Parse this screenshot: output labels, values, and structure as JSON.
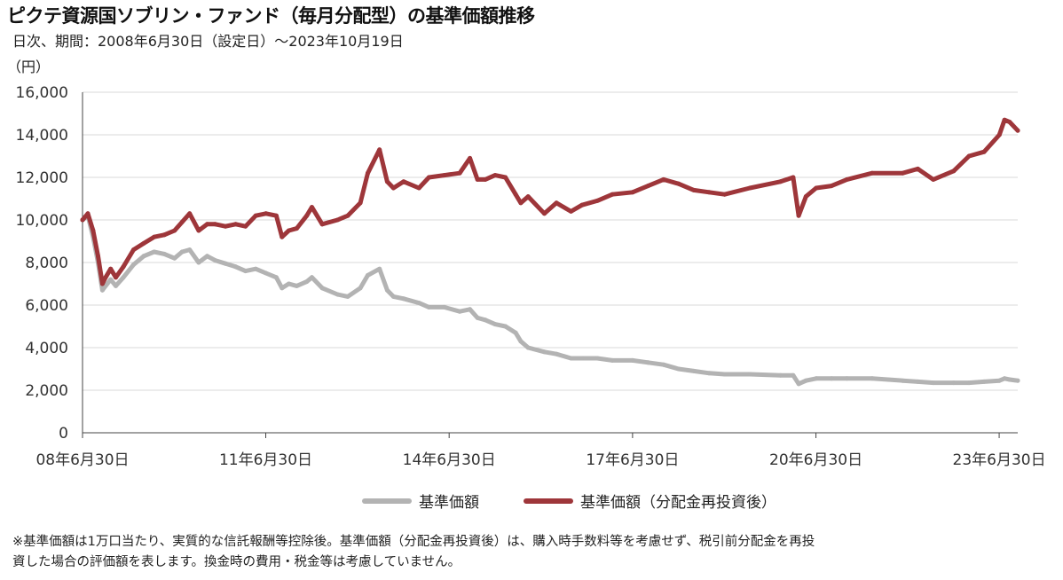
{
  "title": "ピクテ資源国ソブリン・ファンド（毎月分配型）の基準価額推移",
  "subtitle": "日次、期間：2008年6月30日（設定日）～2023年10月19日",
  "note_line1": "※基準価額は1万口当たり、実質的な信託報酬等控除後。基準価額（分配金再投資後）は、購入時手数料等を考慮せず、税引前分配金を再投",
  "note_line2": "資した場合の評価額を表します。換金時の費用・税金等は考慮していません。",
  "chart_data": {
    "type": "line",
    "ylabel": "（円）",
    "ylim": [
      0,
      16000
    ],
    "y_ticks": [
      {
        "value": 0,
        "label": "0"
      },
      {
        "value": 2000,
        "label": "2,000"
      },
      {
        "value": 4000,
        "label": "4,000"
      },
      {
        "value": 6000,
        "label": "6,000"
      },
      {
        "value": 8000,
        "label": "8,000"
      },
      {
        "value": 10000,
        "label": "10,000"
      },
      {
        "value": 12000,
        "label": "12,000"
      },
      {
        "value": 14000,
        "label": "14,000"
      },
      {
        "value": 16000,
        "label": "16,000"
      }
    ],
    "xlim": [
      "2008-06-30",
      "2023-10-19"
    ],
    "x_ticks": [
      {
        "date": "2008-06-30",
        "label": "08年6月30日"
      },
      {
        "date": "2011-06-30",
        "label": "11年6月30日"
      },
      {
        "date": "2014-06-30",
        "label": "14年6月30日"
      },
      {
        "date": "2017-06-30",
        "label": "17年6月30日"
      },
      {
        "date": "2020-06-30",
        "label": "20年6月30日"
      },
      {
        "date": "2023-06-30",
        "label": "23年6月30日"
      }
    ],
    "grid": "horizontal",
    "legend_position": "bottom",
    "series": [
      {
        "name": "基準価額",
        "color": "#b3b3b3",
        "points": [
          [
            "2008-06-30",
            10000
          ],
          [
            "2008-08-01",
            10200
          ],
          [
            "2008-09-01",
            9200
          ],
          [
            "2008-10-01",
            8000
          ],
          [
            "2008-10-27",
            6700
          ],
          [
            "2008-11-15",
            6900
          ],
          [
            "2008-12-15",
            7200
          ],
          [
            "2009-01-15",
            6900
          ],
          [
            "2009-03-01",
            7300
          ],
          [
            "2009-05-01",
            7900
          ],
          [
            "2009-07-01",
            8300
          ],
          [
            "2009-09-01",
            8500
          ],
          [
            "2009-11-01",
            8400
          ],
          [
            "2010-01-01",
            8200
          ],
          [
            "2010-02-15",
            8500
          ],
          [
            "2010-04-01",
            8600
          ],
          [
            "2010-05-25",
            8000
          ],
          [
            "2010-07-15",
            8300
          ],
          [
            "2010-09-01",
            8100
          ],
          [
            "2010-11-01",
            7950
          ],
          [
            "2011-01-01",
            7800
          ],
          [
            "2011-03-01",
            7600
          ],
          [
            "2011-05-01",
            7700
          ],
          [
            "2011-07-01",
            7500
          ],
          [
            "2011-09-01",
            7300
          ],
          [
            "2011-10-05",
            6800
          ],
          [
            "2011-11-15",
            7000
          ],
          [
            "2012-01-01",
            6900
          ],
          [
            "2012-03-01",
            7100
          ],
          [
            "2012-04-01",
            7300
          ],
          [
            "2012-06-01",
            6800
          ],
          [
            "2012-09-01",
            6500
          ],
          [
            "2012-11-01",
            6400
          ],
          [
            "2013-01-15",
            6800
          ],
          [
            "2013-03-01",
            7400
          ],
          [
            "2013-05-10",
            7700
          ],
          [
            "2013-06-25",
            6700
          ],
          [
            "2013-08-01",
            6400
          ],
          [
            "2013-10-01",
            6300
          ],
          [
            "2014-01-01",
            6100
          ],
          [
            "2014-03-01",
            5900
          ],
          [
            "2014-06-01",
            5900
          ],
          [
            "2014-09-01",
            5700
          ],
          [
            "2014-11-01",
            5800
          ],
          [
            "2014-12-16",
            5400
          ],
          [
            "2015-02-01",
            5300
          ],
          [
            "2015-04-01",
            5100
          ],
          [
            "2015-06-01",
            5000
          ],
          [
            "2015-08-01",
            4700
          ],
          [
            "2015-09-01",
            4300
          ],
          [
            "2015-10-15",
            4000
          ],
          [
            "2016-01-20",
            3800
          ],
          [
            "2016-04-01",
            3700
          ],
          [
            "2016-06-27",
            3500
          ],
          [
            "2016-09-01",
            3500
          ],
          [
            "2016-12-01",
            3500
          ],
          [
            "2017-03-01",
            3400
          ],
          [
            "2017-06-30",
            3400
          ],
          [
            "2017-10-01",
            3300
          ],
          [
            "2018-01-01",
            3200
          ],
          [
            "2018-04-01",
            3000
          ],
          [
            "2018-07-01",
            2900
          ],
          [
            "2018-10-01",
            2800
          ],
          [
            "2019-01-01",
            2750
          ],
          [
            "2019-06-01",
            2750
          ],
          [
            "2019-12-01",
            2700
          ],
          [
            "2020-02-15",
            2700
          ],
          [
            "2020-03-19",
            2300
          ],
          [
            "2020-05-01",
            2450
          ],
          [
            "2020-07-01",
            2550
          ],
          [
            "2020-10-01",
            2550
          ],
          [
            "2021-01-01",
            2550
          ],
          [
            "2021-06-01",
            2550
          ],
          [
            "2021-12-01",
            2450
          ],
          [
            "2022-03-01",
            2400
          ],
          [
            "2022-06-01",
            2350
          ],
          [
            "2022-10-01",
            2350
          ],
          [
            "2023-01-01",
            2350
          ],
          [
            "2023-04-01",
            2400
          ],
          [
            "2023-07-01",
            2450
          ],
          [
            "2023-08-01",
            2550
          ],
          [
            "2023-09-01",
            2500
          ],
          [
            "2023-10-19",
            2450
          ]
        ]
      },
      {
        "name": "基準価額（分配金再投資後）",
        "color": "#9e363a",
        "points": [
          [
            "2008-06-30",
            10000
          ],
          [
            "2008-08-01",
            10300
          ],
          [
            "2008-09-01",
            9500
          ],
          [
            "2008-10-01",
            8300
          ],
          [
            "2008-10-27",
            7000
          ],
          [
            "2008-11-15",
            7300
          ],
          [
            "2008-12-15",
            7700
          ],
          [
            "2009-01-15",
            7300
          ],
          [
            "2009-03-01",
            7800
          ],
          [
            "2009-05-01",
            8600
          ],
          [
            "2009-07-01",
            8900
          ],
          [
            "2009-09-01",
            9200
          ],
          [
            "2009-11-01",
            9300
          ],
          [
            "2010-01-01",
            9500
          ],
          [
            "2010-02-15",
            9900
          ],
          [
            "2010-04-01",
            10300
          ],
          [
            "2010-05-25",
            9500
          ],
          [
            "2010-07-15",
            9800
          ],
          [
            "2010-09-01",
            9800
          ],
          [
            "2010-11-01",
            9700
          ],
          [
            "2011-01-01",
            9800
          ],
          [
            "2011-03-01",
            9700
          ],
          [
            "2011-05-01",
            10200
          ],
          [
            "2011-07-01",
            10300
          ],
          [
            "2011-09-01",
            10200
          ],
          [
            "2011-10-05",
            9200
          ],
          [
            "2011-11-15",
            9500
          ],
          [
            "2012-01-01",
            9600
          ],
          [
            "2012-03-01",
            10200
          ],
          [
            "2012-04-01",
            10600
          ],
          [
            "2012-06-01",
            9800
          ],
          [
            "2012-09-01",
            10000
          ],
          [
            "2012-11-01",
            10200
          ],
          [
            "2013-01-15",
            10800
          ],
          [
            "2013-03-01",
            12200
          ],
          [
            "2013-05-10",
            13300
          ],
          [
            "2013-06-25",
            11800
          ],
          [
            "2013-08-01",
            11500
          ],
          [
            "2013-10-01",
            11800
          ],
          [
            "2014-01-01",
            11500
          ],
          [
            "2014-03-01",
            12000
          ],
          [
            "2014-06-01",
            12100
          ],
          [
            "2014-09-01",
            12200
          ],
          [
            "2014-11-01",
            12900
          ],
          [
            "2014-12-16",
            11900
          ],
          [
            "2015-02-01",
            11900
          ],
          [
            "2015-04-01",
            12100
          ],
          [
            "2015-06-01",
            12000
          ],
          [
            "2015-08-01",
            11200
          ],
          [
            "2015-09-01",
            10800
          ],
          [
            "2015-10-15",
            11100
          ],
          [
            "2016-01-20",
            10300
          ],
          [
            "2016-04-01",
            10800
          ],
          [
            "2016-06-27",
            10400
          ],
          [
            "2016-09-01",
            10700
          ],
          [
            "2016-12-01",
            10900
          ],
          [
            "2017-03-01",
            11200
          ],
          [
            "2017-06-30",
            11300
          ],
          [
            "2017-10-01",
            11600
          ],
          [
            "2018-01-01",
            11900
          ],
          [
            "2018-04-01",
            11700
          ],
          [
            "2018-07-01",
            11400
          ],
          [
            "2018-10-01",
            11300
          ],
          [
            "2019-01-01",
            11200
          ],
          [
            "2019-06-01",
            11500
          ],
          [
            "2019-12-01",
            11800
          ],
          [
            "2020-02-15",
            12000
          ],
          [
            "2020-03-19",
            10200
          ],
          [
            "2020-05-01",
            11100
          ],
          [
            "2020-07-01",
            11500
          ],
          [
            "2020-10-01",
            11600
          ],
          [
            "2021-01-01",
            11900
          ],
          [
            "2021-06-01",
            12200
          ],
          [
            "2021-12-01",
            12200
          ],
          [
            "2022-03-01",
            12400
          ],
          [
            "2022-06-01",
            11900
          ],
          [
            "2022-10-01",
            12300
          ],
          [
            "2023-01-01",
            13000
          ],
          [
            "2023-04-01",
            13200
          ],
          [
            "2023-07-01",
            14000
          ],
          [
            "2023-08-01",
            14700
          ],
          [
            "2023-09-01",
            14600
          ],
          [
            "2023-10-19",
            14200
          ]
        ]
      }
    ]
  }
}
